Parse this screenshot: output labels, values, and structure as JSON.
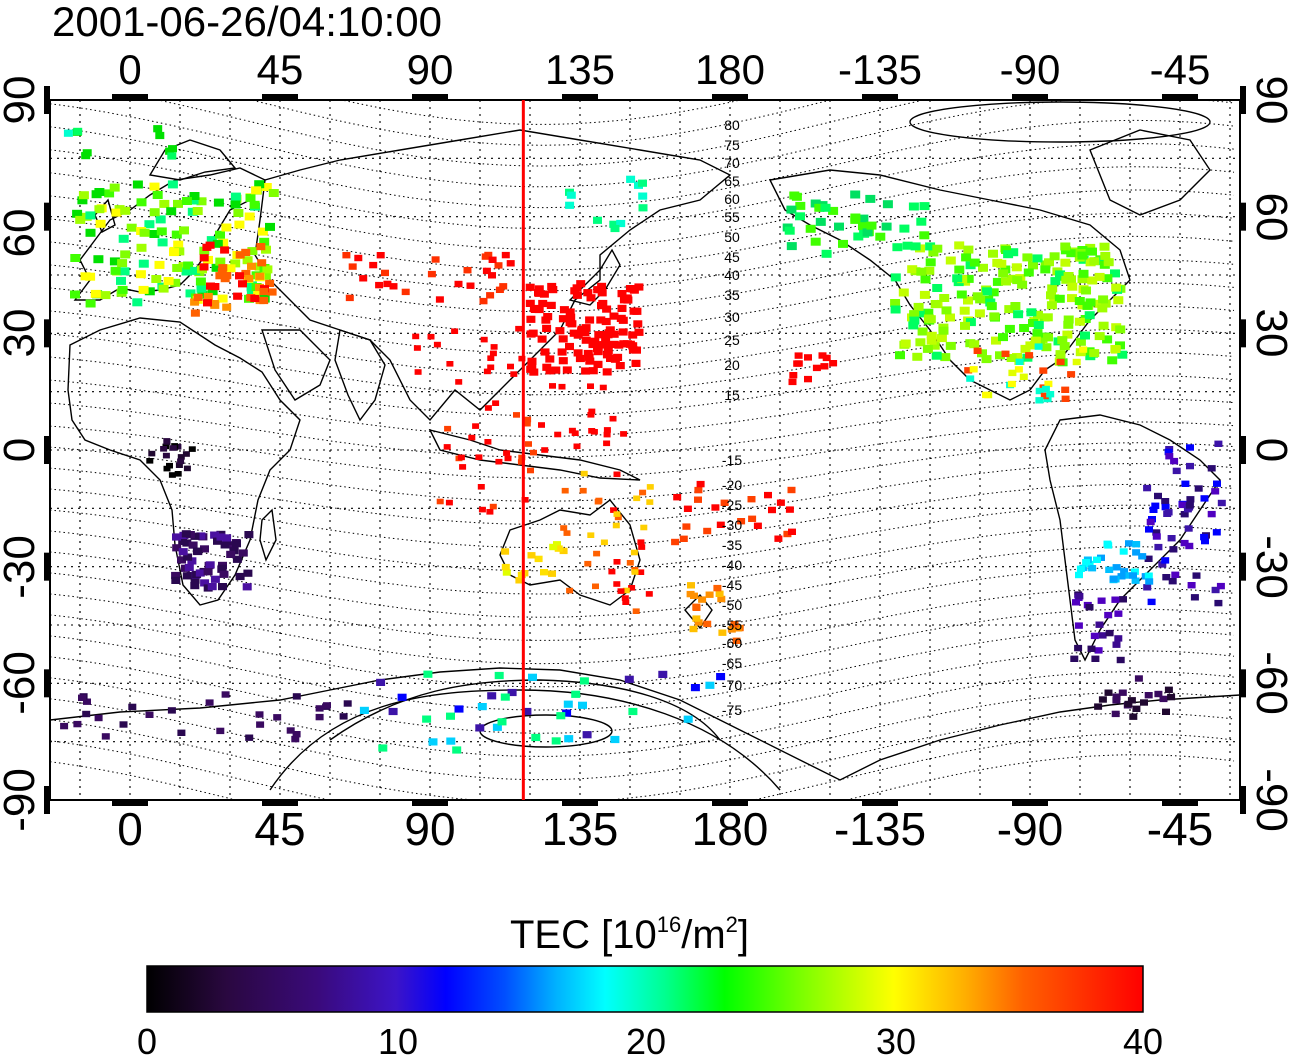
{
  "header": {
    "timestamp": "2001-06-26/04:10:00"
  },
  "map": {
    "lon_ticks": [
      "0",
      "45",
      "90",
      "135",
      "180",
      "-135",
      "-90",
      "-45"
    ],
    "lat_ticks": [
      "90",
      "60",
      "30",
      "0",
      "-30",
      "-60",
      "-90"
    ],
    "grid": true,
    "terminator_longitude": 118,
    "terminator_color": "#ff0000",
    "contour_labels": [
      "80",
      "75",
      "70",
      "65",
      "60",
      "55",
      "50",
      "45",
      "40",
      "35",
      "30",
      "25",
      "20",
      "15",
      "-15",
      "-20",
      "-25",
      "-30",
      "-35",
      "-40",
      "-45",
      "-50",
      "-55",
      "-60",
      "-65",
      "-70",
      "-75"
    ]
  },
  "colorbar": {
    "title_main": "TEC  [10",
    "title_sup1": "16",
    "title_mid": "/m",
    "title_sup2": "2",
    "title_end": "]",
    "ticks": [
      "0",
      "10",
      "20",
      "30",
      "40"
    ],
    "range": [
      0,
      40
    ],
    "colormap": [
      "#000000",
      "#3a0a60",
      "#3c14a8",
      "#0000ff",
      "#00a8ff",
      "#00ffff",
      "#00ff80",
      "#00ff00",
      "#a0ff00",
      "#ffff00",
      "#ff8000",
      "#ff0000"
    ]
  }
}
